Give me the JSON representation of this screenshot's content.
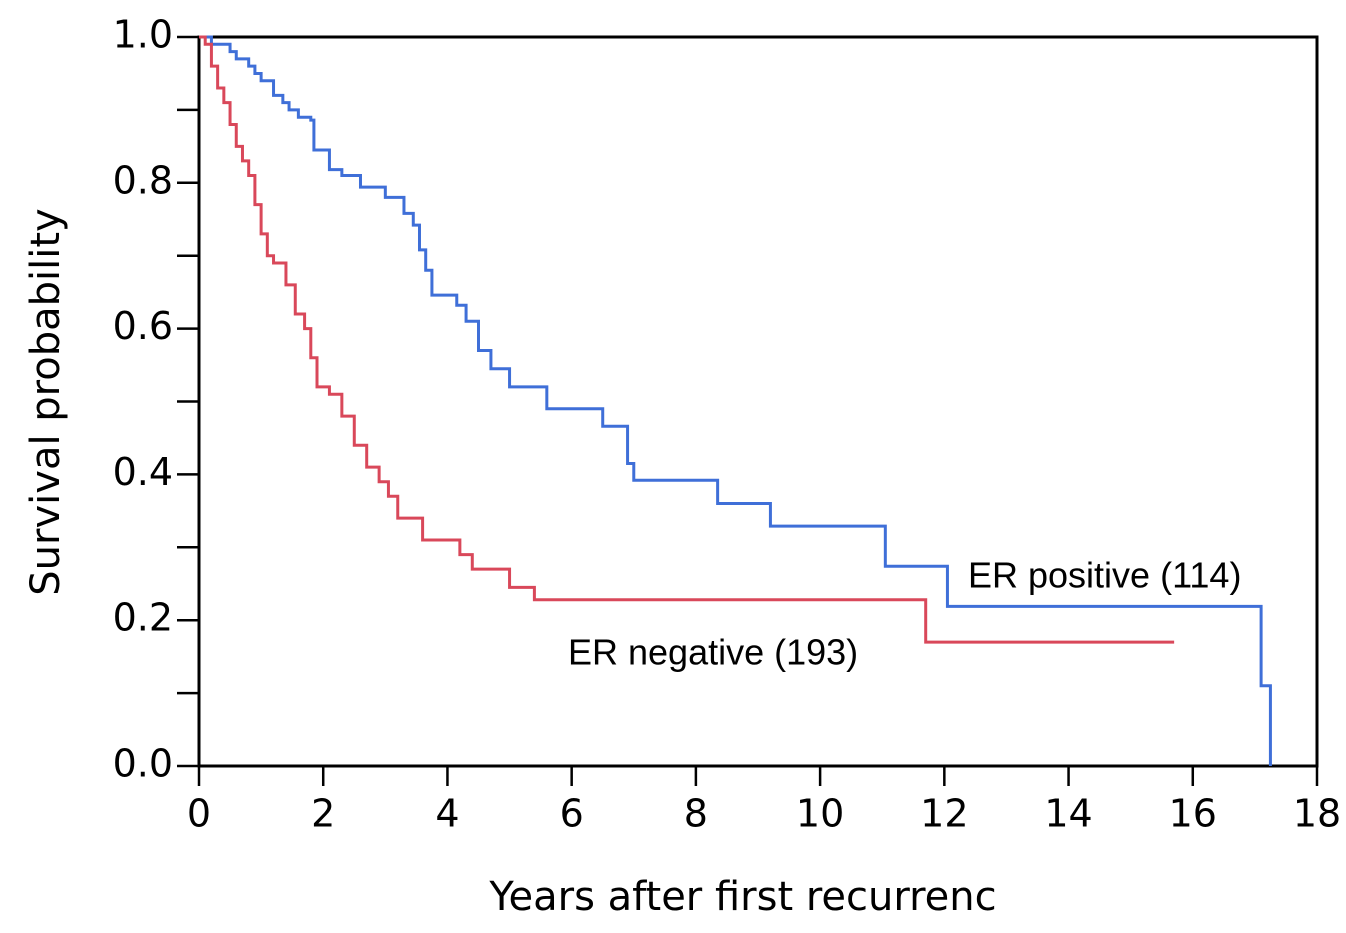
{
  "chart_data": {
    "type": "step",
    "x_label": "Years after first recurrenc",
    "y_label": "Survival probability",
    "xlim": [
      0,
      18
    ],
    "ylim": [
      0,
      1
    ],
    "xticks": [
      0,
      2,
      4,
      6,
      8,
      10,
      12,
      14,
      16,
      18
    ],
    "yticks": [
      {
        "value": 0,
        "label": "0.0"
      },
      0.2,
      0.4,
      0.6,
      0.8,
      {
        "value": 1,
        "label": "1.0"
      }
    ],
    "yminorticks": [
      0.1,
      0.3,
      0.5,
      0.7,
      0.9
    ],
    "series": [
      {
        "name": "ER positive (114)",
        "color": "#3f6fd8",
        "x": [
          0,
          0.2,
          0.5,
          0.6,
          0.8,
          0.9,
          1.0,
          1.2,
          1.35,
          1.45,
          1.6,
          1.8,
          1.85,
          2.1,
          2.3,
          2.6,
          3.0,
          3.3,
          3.45,
          3.55,
          3.65,
          3.75,
          4.15,
          4.3,
          4.5,
          4.7,
          5.0,
          5.6,
          6.5,
          6.9,
          7.0,
          8.35,
          9.2,
          11.05,
          12.05,
          17.1,
          17.25
        ],
        "values": [
          1.0,
          0.99,
          0.98,
          0.97,
          0.96,
          0.95,
          0.94,
          0.92,
          0.91,
          0.9,
          0.89,
          0.886,
          0.845,
          0.818,
          0.81,
          0.794,
          0.78,
          0.758,
          0.742,
          0.708,
          0.68,
          0.646,
          0.632,
          0.61,
          0.57,
          0.545,
          0.52,
          0.49,
          0.466,
          0.415,
          0.392,
          0.36,
          0.329,
          0.274,
          0.219,
          0.11,
          0.0
        ]
      },
      {
        "name": "ER negative (193)",
        "color": "#d9485a",
        "x": [
          0,
          0.1,
          0.2,
          0.3,
          0.4,
          0.5,
          0.6,
          0.7,
          0.8,
          0.9,
          1.0,
          1.1,
          1.2,
          1.4,
          1.55,
          1.7,
          1.8,
          1.9,
          2.1,
          2.3,
          2.5,
          2.7,
          2.9,
          3.05,
          3.2,
          3.6,
          4.2,
          4.4,
          5.0,
          5.4,
          11.7,
          15.7
        ],
        "values": [
          1.0,
          0.99,
          0.96,
          0.93,
          0.91,
          0.88,
          0.85,
          0.83,
          0.81,
          0.77,
          0.73,
          0.7,
          0.69,
          0.66,
          0.62,
          0.6,
          0.56,
          0.52,
          0.51,
          0.48,
          0.44,
          0.41,
          0.39,
          0.37,
          0.34,
          0.31,
          0.29,
          0.27,
          0.245,
          0.228,
          0.17,
          0.17
        ]
      }
    ]
  }
}
